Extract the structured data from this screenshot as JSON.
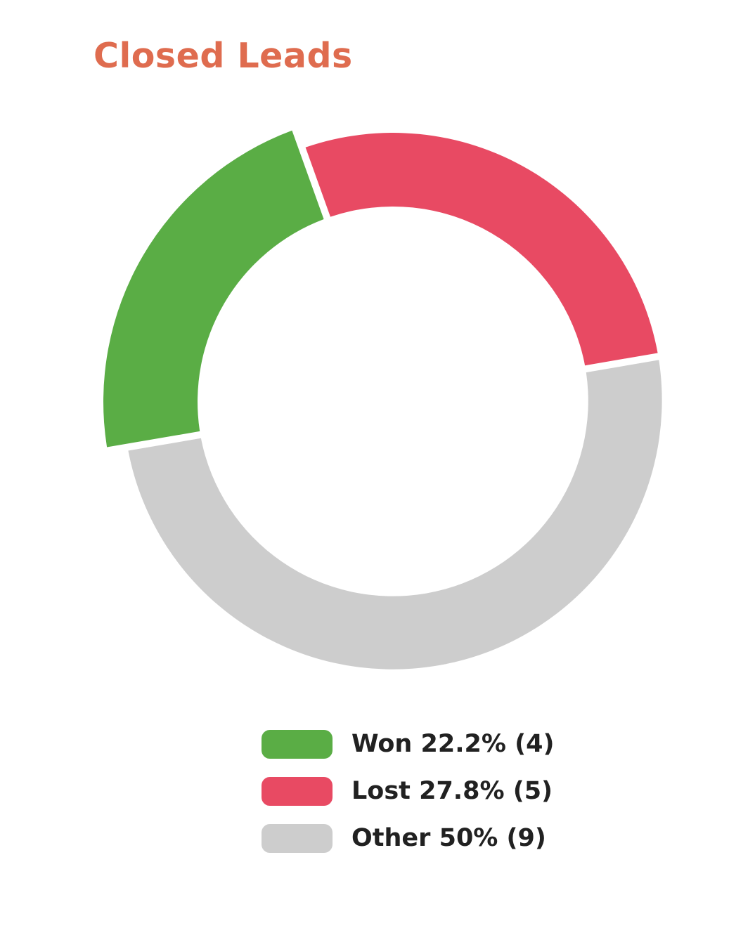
{
  "title": "Closed Leads",
  "chart_data": {
    "type": "pie",
    "donut": true,
    "title": "Closed Leads",
    "labels": [
      "Won",
      "Lost",
      "Other"
    ],
    "values": [
      4,
      5,
      9
    ],
    "percentages": [
      22.2,
      27.8,
      50
    ],
    "total": 18,
    "colors": [
      "#5aad45",
      "#e84a63",
      "#cdcdcd"
    ],
    "start_angle_deg": 260.3,
    "highlighted_slice": "Won",
    "legend_position": "bottom",
    "grid": false
  },
  "legend": {
    "items": [
      {
        "label": "Won 22.2% (4)",
        "color": "#5aad45"
      },
      {
        "label": "Lost 27.8% (5)",
        "color": "#e84a63"
      },
      {
        "label": "Other 50% (9)",
        "color": "#cdcdcd"
      }
    ]
  },
  "colors": {
    "title": "#df6c4f",
    "legend_text": "#212121",
    "background": "#ffffff"
  }
}
